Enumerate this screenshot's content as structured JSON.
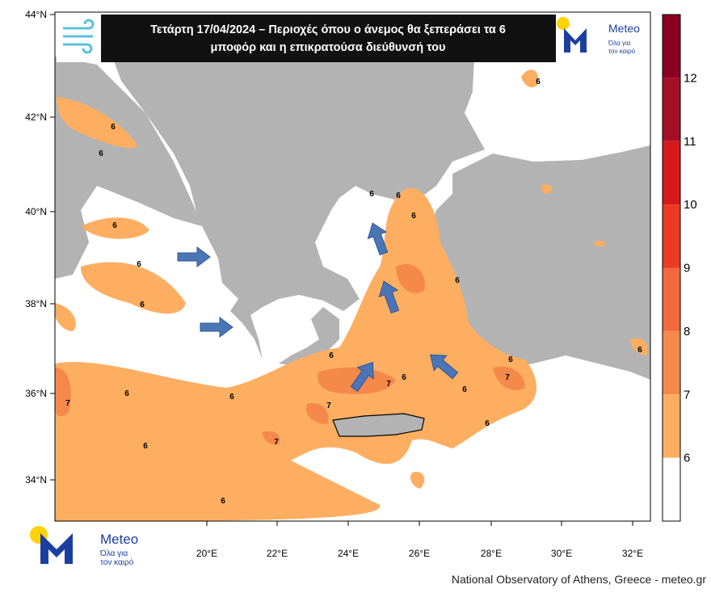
{
  "map": {
    "title_lines": [
      "Τετάρτη 17/04/2024 – Περιοχές όπου ο άνεμος θα ξεπεράσει τα 6",
      "μποφόρ και η επικρατούσα διεύθυνσή του"
    ],
    "lat_labels": [
      "44°N",
      "42°N",
      "40°N",
      "38°N",
      "36°N",
      "34°N"
    ],
    "lon_labels": [
      "20°E",
      "22°E",
      "24°E",
      "26°E",
      "28°E",
      "30°E",
      "32°E"
    ],
    "colorbar_levels": [
      12,
      11,
      10,
      9,
      8,
      7,
      6
    ],
    "contour_labels": [
      "6",
      "6",
      "6",
      "6",
      "6",
      "6",
      "6",
      "6",
      "6",
      "6",
      "6",
      "6",
      "7",
      "6",
      "6",
      "7",
      "7",
      "6",
      "7",
      "7",
      "6",
      "6",
      "6",
      "6",
      "6"
    ]
  },
  "logo": {
    "name": "Meteo",
    "tagline_lines": [
      "Όλα για",
      "τον καιρό"
    ]
  },
  "footer": "National Observatory of Athens, Greece - meteo.gr"
}
